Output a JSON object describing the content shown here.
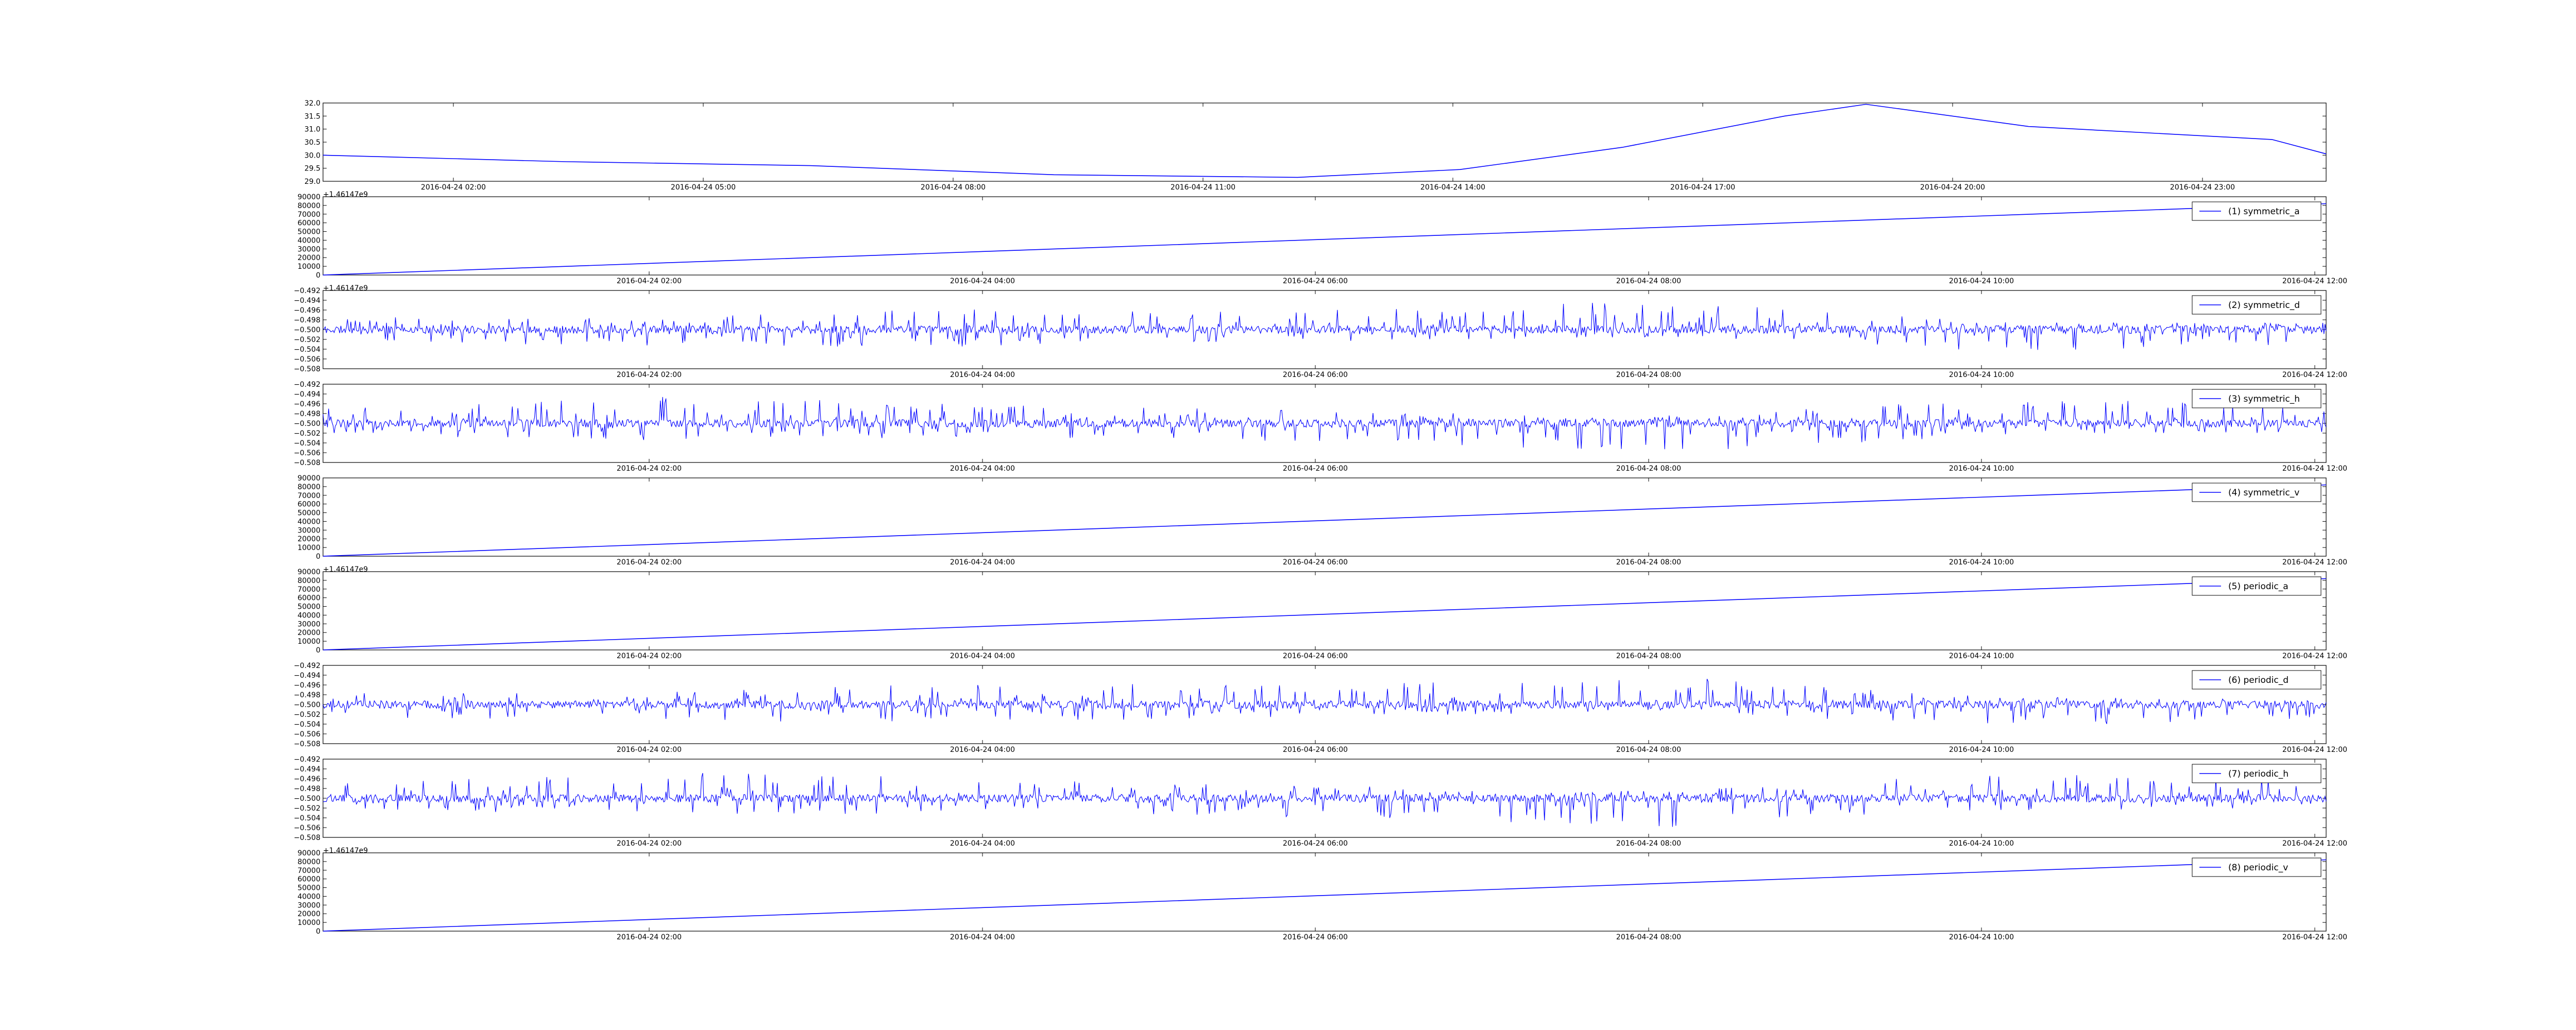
{
  "chart_data": [
    {
      "type": "line",
      "kind": "smooth",
      "x_axis": {
        "type": "date",
        "tick_labels": [
          "2016-04-24 02:00",
          "2016-04-24 05:00",
          "2016-04-24 08:00",
          "2016-04-24 11:00",
          "2016-04-24 14:00",
          "2016-04-24 17:00",
          "2016-04-24 20:00",
          "2016-04-24 23:00"
        ]
      },
      "y_axis": {
        "ylim": [
          29.0,
          32.0
        ],
        "tick_labels": [
          "29.0",
          "29.5",
          "30.0",
          "30.5",
          "31.0",
          "31.5",
          "32.0"
        ]
      },
      "offset_text": "+1.46147e9",
      "legend": null,
      "series": [
        {
          "color": "#0000ff",
          "x": [
            "2016-04-24 00:00",
            "2016-04-24 03:00",
            "2016-04-24 06:00",
            "2016-04-24 09:00",
            "2016-04-24 12:00",
            "2016-04-24 14:00",
            "2016-04-24 16:00",
            "2016-04-24 18:00",
            "2016-04-24 19:00",
            "2016-04-24 21:00",
            "2016-04-25 00:00",
            "2016-04-25 00:40"
          ],
          "y": [
            30.0,
            29.75,
            29.6,
            29.25,
            29.15,
            29.45,
            30.3,
            31.5,
            31.95,
            31.1,
            30.6,
            30.05
          ]
        }
      ]
    },
    {
      "type": "line",
      "kind": "ramp",
      "x_axis": {
        "type": "date",
        "tick_labels": [
          "2016-04-24 02:00",
          "2016-04-24 04:00",
          "2016-04-24 06:00",
          "2016-04-24 08:00",
          "2016-04-24 10:00",
          "2016-04-24 12:00"
        ]
      },
      "y_axis": {
        "ylim": [
          0,
          90000
        ],
        "tick_labels": [
          "0",
          "10000",
          "20000",
          "30000",
          "40000",
          "50000",
          "60000",
          "70000",
          "80000",
          "90000"
        ]
      },
      "offset_text": "+1.46147e9",
      "legend": {
        "label": "(1) symmetric_a",
        "placement": "top-right"
      },
      "series": [
        {
          "color": "#0000ff",
          "x": [
            "2016-04-24 00:00",
            "2016-04-24 12:00"
          ],
          "y": [
            0,
            82000
          ]
        }
      ]
    },
    {
      "type": "line",
      "kind": "noise",
      "seed": 11,
      "x_axis": {
        "type": "date",
        "tick_labels": [
          "2016-04-24 02:00",
          "2016-04-24 04:00",
          "2016-04-24 06:00",
          "2016-04-24 08:00",
          "2016-04-24 10:00",
          "2016-04-24 12:00"
        ]
      },
      "y_axis": {
        "ylim": [
          -0.508,
          -0.492
        ],
        "tick_labels": [
          "-0.508",
          "-0.506",
          "-0.504",
          "-0.502",
          "-0.500",
          "-0.498",
          "-0.496",
          "-0.494",
          "-0.492"
        ]
      },
      "offset_text": "",
      "legend": {
        "label": "(2) symmetric_d",
        "placement": "top-right"
      },
      "series": [
        {
          "color": "#0000ff",
          "x_range": [
            "2016-04-24 00:00",
            "2016-04-24 12:00"
          ],
          "center": -0.5,
          "up": [
            0.0025,
            0.0025,
            0.0045,
            0.004,
            0.006,
            0.0015,
            0.0015
          ],
          "down": [
            0.0025,
            0.0035,
            0.0035,
            0.0025,
            0.0015,
            0.0045,
            0.003
          ]
        }
      ]
    },
    {
      "type": "line",
      "kind": "noise",
      "seed": 23,
      "x_axis": {
        "type": "date",
        "tick_labels": [
          "2016-04-24 02:00",
          "2016-04-24 04:00",
          "2016-04-24 06:00",
          "2016-04-24 08:00",
          "2016-04-24 10:00",
          "2016-04-24 12:00"
        ]
      },
      "y_axis": {
        "ylim": [
          -0.508,
          -0.492
        ],
        "tick_labels": [
          "-0.508",
          "-0.506",
          "-0.504",
          "-0.502",
          "-0.500",
          "-0.498",
          "-0.496",
          "-0.494",
          "-0.492"
        ]
      },
      "offset_text": "",
      "legend": {
        "label": "(3) symmetric_h",
        "placement": "top-right"
      },
      "series": [
        {
          "color": "#0000ff",
          "x_range": [
            "2016-04-24 00:00",
            "2016-04-24 12:00"
          ],
          "center": -0.5,
          "up": [
            0.003,
            0.0055,
            0.004,
            0.0025,
            0.0015,
            0.005,
            0.004
          ],
          "down": [
            0.0025,
            0.0035,
            0.003,
            0.004,
            0.006,
            0.0025,
            0.002
          ]
        }
      ]
    },
    {
      "type": "line",
      "kind": "ramp",
      "x_axis": {
        "type": "date",
        "tick_labels": [
          "2016-04-24 02:00",
          "2016-04-24 04:00",
          "2016-04-24 06:00",
          "2016-04-24 08:00",
          "2016-04-24 10:00",
          "2016-04-24 12:00"
        ]
      },
      "y_axis": {
        "ylim": [
          0,
          90000
        ],
        "tick_labels": [
          "0",
          "10000",
          "20000",
          "30000",
          "40000",
          "50000",
          "60000",
          "70000",
          "80000",
          "90000"
        ]
      },
      "offset_text": "+1.46147e9",
      "legend": {
        "label": "(4) symmetric_v",
        "placement": "top-right"
      },
      "series": [
        {
          "color": "#0000ff",
          "x": [
            "2016-04-24 00:00",
            "2016-04-24 12:00"
          ],
          "y": [
            0,
            82000
          ]
        }
      ]
    },
    {
      "type": "line",
      "kind": "ramp",
      "x_axis": {
        "type": "date",
        "tick_labels": [
          "2016-04-24 02:00",
          "2016-04-24 04:00",
          "2016-04-24 06:00",
          "2016-04-24 08:00",
          "2016-04-24 10:00",
          "2016-04-24 12:00"
        ]
      },
      "y_axis": {
        "ylim": [
          0,
          90000
        ],
        "tick_labels": [
          "0",
          "10000",
          "20000",
          "30000",
          "40000",
          "50000",
          "60000",
          "70000",
          "80000",
          "90000"
        ]
      },
      "offset_text": "",
      "legend": {
        "label": "(5) periodic_a",
        "placement": "top-right"
      },
      "series": [
        {
          "color": "#0000ff",
          "x": [
            "2016-04-24 00:00",
            "2016-04-24 12:00"
          ],
          "y": [
            0,
            82000
          ]
        }
      ]
    },
    {
      "type": "line",
      "kind": "noise",
      "seed": 37,
      "x_axis": {
        "type": "date",
        "tick_labels": [
          "2016-04-24 02:00",
          "2016-04-24 04:00",
          "2016-04-24 06:00",
          "2016-04-24 08:00",
          "2016-04-24 10:00",
          "2016-04-24 12:00"
        ]
      },
      "y_axis": {
        "ylim": [
          -0.508,
          -0.492
        ],
        "tick_labels": [
          "-0.508",
          "-0.506",
          "-0.504",
          "-0.502",
          "-0.500",
          "-0.498",
          "-0.496",
          "-0.494",
          "-0.492"
        ]
      },
      "offset_text": "",
      "legend": {
        "label": "(6) periodic_d",
        "placement": "top-right"
      },
      "series": [
        {
          "color": "#0000ff",
          "x_range": [
            "2016-04-24 00:00",
            "2016-04-24 12:00"
          ],
          "center": -0.5,
          "up": [
            0.0025,
            0.0025,
            0.0045,
            0.004,
            0.006,
            0.0015,
            0.0015
          ],
          "down": [
            0.0025,
            0.0035,
            0.0035,
            0.0025,
            0.0015,
            0.0045,
            0.003
          ]
        }
      ]
    },
    {
      "type": "line",
      "kind": "noise",
      "seed": 53,
      "x_axis": {
        "type": "date",
        "tick_labels": [
          "2016-04-24 02:00",
          "2016-04-24 04:00",
          "2016-04-24 06:00",
          "2016-04-24 08:00",
          "2016-04-24 10:00",
          "2016-04-24 12:00"
        ]
      },
      "y_axis": {
        "ylim": [
          -0.508,
          -0.492
        ],
        "tick_labels": [
          "-0.508",
          "-0.506",
          "-0.504",
          "-0.502",
          "-0.500",
          "-0.498",
          "-0.496",
          "-0.494",
          "-0.492"
        ]
      },
      "offset_text": "+1.46147e9",
      "legend": {
        "label": "(7) periodic_h",
        "placement": "top-right"
      },
      "series": [
        {
          "color": "#0000ff",
          "x_range": [
            "2016-04-24 00:00",
            "2016-04-24 12:00"
          ],
          "center": -0.5,
          "up": [
            0.003,
            0.0055,
            0.004,
            0.0025,
            0.0015,
            0.005,
            0.004
          ],
          "down": [
            0.0025,
            0.0035,
            0.003,
            0.004,
            0.006,
            0.0025,
            0.002
          ]
        }
      ]
    },
    {
      "type": "line",
      "kind": "ramp",
      "x_axis": {
        "type": "date",
        "tick_labels": [
          "2016-04-24 02:00",
          "2016-04-24 04:00",
          "2016-04-24 06:00",
          "2016-04-24 08:00",
          "2016-04-24 10:00",
          "2016-04-24 12:00"
        ]
      },
      "y_axis": {
        "ylim": [
          0,
          90000
        ],
        "tick_labels": [
          "0",
          "10000",
          "20000",
          "30000",
          "40000",
          "50000",
          "60000",
          "70000",
          "80000",
          "90000"
        ]
      },
      "offset_text": "",
      "legend": {
        "label": "(8) periodic_v",
        "placement": "top-right"
      },
      "series": [
        {
          "color": "#0000ff",
          "x": [
            "2016-04-24 00:00",
            "2016-04-24 12:00"
          ],
          "y": [
            0,
            82000
          ]
        }
      ]
    }
  ]
}
